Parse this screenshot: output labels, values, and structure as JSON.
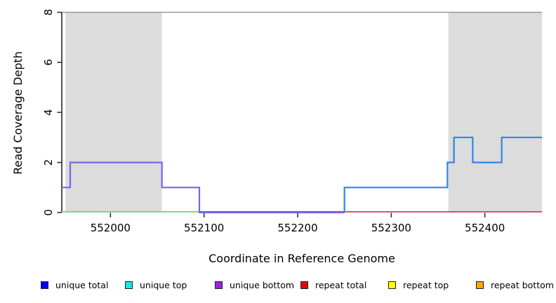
{
  "axes": {
    "x_label": "Coordinate in Reference Genome",
    "y_label": "Read Coverage Depth"
  },
  "legend": {
    "items": [
      {
        "label": "unique total",
        "color": "#0000ee"
      },
      {
        "label": "unique top",
        "color": "#00eeee"
      },
      {
        "label": "unique bottom",
        "color": "#9a1fe8"
      },
      {
        "label": "repeat total",
        "color": "#ee0000"
      },
      {
        "label": "repeat top",
        "color": "#ffff00"
      },
      {
        "label": "repeat bottom",
        "color": "#ffa500"
      }
    ]
  },
  "chart_data": {
    "type": "line",
    "title": "",
    "xlabel": "Coordinate in Reference Genome",
    "ylabel": "Read Coverage Depth",
    "xlim": [
      551948,
      552461
    ],
    "ylim": [
      0,
      8
    ],
    "x_ticks": [
      552000,
      552100,
      552200,
      552300,
      552400
    ],
    "y_ticks": [
      0,
      2,
      4,
      6,
      8
    ],
    "grid": "top-border-only",
    "legend_position": "bottom",
    "shaded_regions": [
      {
        "name": "repeat-region-left",
        "from": 551952,
        "to": 552055,
        "color": "#dcdcdc"
      },
      {
        "name": "repeat-region-right",
        "from": 552361,
        "to": 552461,
        "color": "#dcdcdc"
      }
    ],
    "series": [
      {
        "name": "unique-bottom-coverage",
        "color": "#7766e8",
        "start": 551948,
        "start_value": 1,
        "steps": [
          [
            551957,
            2
          ],
          [
            552055,
            1
          ],
          [
            552095,
            0
          ]
        ],
        "end": 552250
      },
      {
        "name": "unique-top-coverage",
        "color": "#2e86ec",
        "start": 552250,
        "start_value": 0,
        "steps": [
          [
            552250,
            1
          ],
          [
            552360,
            2
          ],
          [
            552367,
            3
          ],
          [
            552387,
            2
          ],
          [
            552418,
            3
          ]
        ],
        "end": 552461
      }
    ],
    "zero_depth_segments": [
      {
        "name": "zero-coverage-left",
        "from": 551948,
        "to": 552095,
        "color": "#8fce8f"
      },
      {
        "name": "zero-coverage-middle",
        "from": 552095,
        "to": 552250,
        "color": "#5b59e2"
      },
      {
        "name": "zero-coverage-right",
        "from": 552250,
        "to": 552461,
        "color": "#d85470"
      }
    ],
    "style": {
      "axis_color": "#333333",
      "top_border_color": "#999999",
      "tick_label_color": "#000000"
    }
  }
}
